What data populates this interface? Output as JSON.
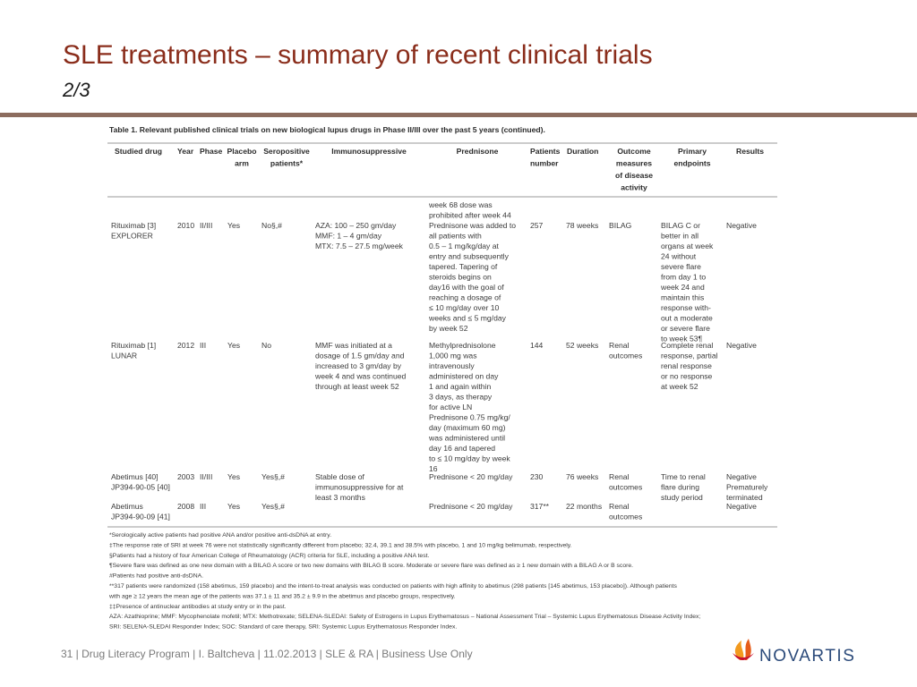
{
  "header": {
    "title": "SLE treatments – summary of recent clinical trials",
    "subtitle": "2/3"
  },
  "table": {
    "caption": "Table 1. Relevant published clinical trials on new biological lupus drugs in Phase II/III over the past 5 years (continued).",
    "headers": [
      [
        "Studied drug"
      ],
      [
        "Year"
      ],
      [
        "Phase"
      ],
      [
        "Placebo",
        "arm"
      ],
      [
        "Seropositive",
        "patients*"
      ],
      [
        "Immunosuppressive"
      ],
      [
        "Prednisone"
      ],
      [
        "Patients",
        "number"
      ],
      [
        "Duration"
      ],
      [
        "Outcome",
        "measures",
        "of disease",
        "activity"
      ],
      [
        "Primary",
        "endpoints"
      ],
      [
        "Results"
      ]
    ],
    "continued": [
      "week 68 dose was",
      "prohibited after week 44"
    ],
    "rows": [
      [
        [
          "Rituximab [3]",
          "EXPLORER"
        ],
        [
          "2010"
        ],
        [
          "II/III"
        ],
        [
          "Yes"
        ],
        [
          "No§,#"
        ],
        [
          "AZA: 100 – 250 gm/day",
          "MMF: 1 – 4 gm/day",
          "MTX: 7.5 – 27.5 mg/week"
        ],
        [
          "Prednisone was added to",
          "all patients with",
          "0.5 – 1 mg/kg/day at",
          "entry and subsequently",
          "tapered. Tapering of",
          "steroids begins on",
          "day16 with the goal of",
          "reaching a dosage of",
          "≤ 10 mg/day over 10",
          "weeks and ≤ 5 mg/day",
          "by week 52"
        ],
        [
          "257"
        ],
        [
          "78 weeks"
        ],
        [
          "BILAG"
        ],
        [
          "BILAG C or",
          "better in all",
          "organs at week",
          "24 without",
          "severe flare",
          "from day 1 to",
          "week 24 and",
          "maintain this",
          "response with-",
          "out a moderate",
          "or severe flare",
          "to week 53¶"
        ],
        [
          "Negative"
        ]
      ],
      [
        [
          "Rituximab [1]",
          "LUNAR"
        ],
        [
          "2012"
        ],
        [
          "III"
        ],
        [
          "Yes"
        ],
        [
          "No"
        ],
        [
          "MMF was initiated at a",
          "dosage of 1.5 gm/day and",
          "increased to 3 gm/day by",
          "week 4 and was continued",
          "through at least week 52"
        ],
        [
          "Methylprednisolone",
          "1,000 mg was",
          "intravenously",
          "administered on day",
          "1 and again within",
          "3 days, as therapy",
          "for active LN",
          "Prednisone 0.75 mg/kg/",
          "day (maximum 60 mg)",
          "was administered until",
          "day 16 and tapered",
          "to ≤ 10 mg/day by week",
          "16"
        ],
        [
          "144"
        ],
        [
          "52 weeks"
        ],
        [
          "Renal",
          "outcomes"
        ],
        [
          "Complete renal",
          "response, partial",
          "renal response",
          "or no response",
          "at week 52"
        ],
        [
          "Negative"
        ]
      ],
      [
        [
          "Abetimus [40]",
          "JP394-90-05 [40]"
        ],
        [
          "2003"
        ],
        [
          "II/III"
        ],
        [
          "Yes"
        ],
        [
          "Yes§,#"
        ],
        [
          "Stable dose of",
          "immunosuppressive for at",
          "least 3 months"
        ],
        [
          "Prednisone < 20 mg/day"
        ],
        [
          "230"
        ],
        [
          "76 weeks"
        ],
        [
          "Renal",
          "outcomes"
        ],
        [
          "Time to renal",
          "flare during",
          "study period"
        ],
        [
          "Negative",
          "Prematurely",
          "terminated"
        ]
      ],
      [
        [
          "Abetimus",
          "JP394-90-09 [41]"
        ],
        [
          "2008"
        ],
        [
          "III"
        ],
        [
          "Yes"
        ],
        [
          "Yes§,#"
        ],
        [],
        [
          "Prednisone < 20 mg/day"
        ],
        [
          "317**"
        ],
        [
          "22 months"
        ],
        [
          "Renal",
          "outcomes"
        ],
        [],
        [
          "Negative"
        ]
      ]
    ],
    "footnotes": [
      "*Serologically active patients had positive ANA and/or positive anti-dsDNA at entry.",
      "‡The response rate of SRI at week 76 were not statistically significantly different from placebo; 32.4, 39.1 and 38.5% with placebo, 1 and 10 mg/kg belimumab, respectively.",
      "§Patients had a history of four American College of Rheumatology (ACR) criteria for SLE, including a positive ANA test.",
      "¶Severe flare was defined as one new domain with a BILAG A score or two new domains with BILAG B score. Moderate or severe flare was defined as ≥ 1 new domain with a BILAG A or B score.",
      "#Patients had positive anti-dsDNA.",
      "**317 patients were randomized (158 abetimus, 159 placebo) and the intent-to-treat analysis was conducted on patients with high affinity to abetimus (298 patients [145 abetimus, 153 placebo]). Although patients",
      "with age ≥ 12 years the mean age of the patients was 37.1 ± 11 and 35.2 ± 9.9 in the abetimus and placebo groups, respectively.",
      "‡‡Presence of antinuclear antibodies at study entry or in the past.",
      "AZA: Azathioprine; MMF: Mycophenolate mofetil; MTX: Methotrexate; SELENA-SLEDAI: Safety of Estrogens in Lupus Erythematosus – National Assessment Trial – Systemic Lupus Erythematosus Disease Activity Index;",
      "SRI: SELENA-SLEDAI Responder Index; SOC: Standard of care therapy, SRI: Systemic Lupus Erythematosus Responder Index."
    ]
  },
  "footer": {
    "text": "31  | Drug Literacy Program | I. Baltcheva | 11.02.2013 | SLE & RA | Business Use Only",
    "logo": "NOVARTIS"
  }
}
